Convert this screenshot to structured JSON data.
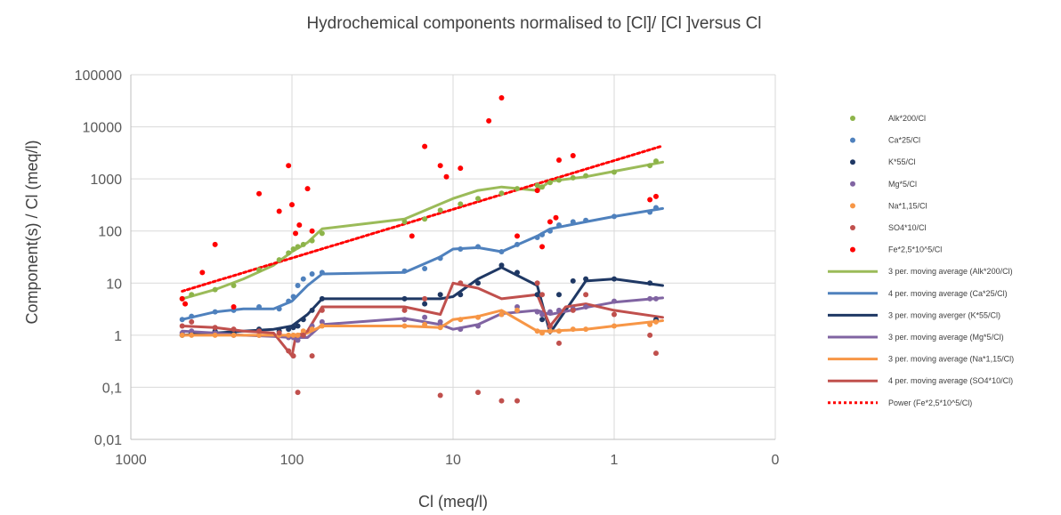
{
  "chart_data": {
    "type": "scatter",
    "title": "Hydrochemical components normalised to [Cl]/ [Cl ]versus Cl",
    "xlabel": "Cl (meq/l)",
    "ylabel": "Component(s) / Cl (meq/l)",
    "x_scale": "log",
    "x_reversed": true,
    "y_scale": "log",
    "xlim": [
      1000,
      0.1
    ],
    "ylim": [
      0.01,
      100000
    ],
    "x_tick_values": [
      1000,
      100,
      10,
      1,
      0.1
    ],
    "x_ticks": [
      "1000",
      "100",
      "10",
      "1",
      "0"
    ],
    "y_tick_values": [
      100000,
      10000,
      1000,
      100,
      10,
      1,
      0.1,
      0.01
    ],
    "y_ticks": [
      "100000",
      "10000",
      "1000",
      "100",
      "10",
      "1",
      "0,1",
      "0,01"
    ],
    "grid": true,
    "legend_position": "right",
    "series": [
      {
        "name": "Alk*200/Cl",
        "kind": "scatter",
        "color": "#8db44a",
        "x": [
          480,
          420,
          300,
          230,
          160,
          120,
          105,
          98,
          92,
          85,
          75,
          65,
          20,
          15,
          12,
          9,
          7,
          5,
          4,
          3,
          2.8,
          2.5,
          2.2,
          1.8,
          1.5,
          1,
          0.6,
          0.55
        ],
        "y": [
          5,
          6,
          7.5,
          9,
          18,
          28,
          38,
          45,
          50,
          55,
          65,
          90,
          150,
          170,
          250,
          330,
          420,
          530,
          650,
          750,
          700,
          850,
          950,
          1050,
          1150,
          1350,
          1800,
          2200
        ]
      },
      {
        "name": "Ca*25/Cl",
        "kind": "scatter",
        "color": "#4f81bd",
        "x": [
          480,
          420,
          300,
          230,
          160,
          120,
          105,
          98,
          92,
          85,
          75,
          65,
          20,
          15,
          12,
          9,
          7,
          5,
          4,
          3,
          2.8,
          2.5,
          2.2,
          1.8,
          1.5,
          1,
          0.6,
          0.55
        ],
        "y": [
          2,
          2.3,
          2.8,
          3,
          3.5,
          3.2,
          4.5,
          5.5,
          9,
          12,
          15,
          16,
          17,
          19,
          30,
          45,
          50,
          40,
          55,
          75,
          85,
          100,
          130,
          150,
          160,
          190,
          230,
          280
        ]
      },
      {
        "name": "K*55/Cl",
        "kind": "scatter",
        "color": "#1f3864",
        "x": [
          480,
          420,
          300,
          230,
          160,
          120,
          105,
          98,
          92,
          85,
          75,
          65,
          20,
          15,
          12,
          9,
          7,
          5,
          4,
          3,
          2.8,
          2.5,
          2.2,
          1.8,
          1.5,
          1,
          0.6,
          0.55
        ],
        "y": [
          1,
          1.1,
          1.2,
          1.1,
          1.3,
          1.2,
          1.3,
          1.4,
          1.5,
          2,
          3,
          5,
          5,
          4,
          6,
          6,
          10,
          22,
          16,
          6,
          2,
          1.2,
          6,
          11,
          12,
          12,
          10,
          2
        ]
      },
      {
        "name": "Mg*5/Cl",
        "kind": "scatter",
        "color": "#8064a2",
        "x": [
          480,
          420,
          300,
          230,
          160,
          120,
          105,
          98,
          92,
          85,
          75,
          65,
          20,
          15,
          12,
          9,
          7,
          5,
          4,
          3,
          2.8,
          2.5,
          2.2,
          1.8,
          1.5,
          1,
          0.6,
          0.55
        ],
        "y": [
          1.1,
          1.2,
          1.1,
          1,
          1,
          1,
          0.9,
          0.9,
          0.8,
          1,
          1.5,
          1.8,
          2,
          2.2,
          1.8,
          1.3,
          1.5,
          2.5,
          3.5,
          2.8,
          2.5,
          2.8,
          3,
          3.2,
          3.5,
          4.5,
          5,
          5
        ]
      },
      {
        "name": "Na*1,15/Cl",
        "kind": "scatter",
        "color": "#f79646",
        "x": [
          480,
          420,
          300,
          230,
          160,
          120,
          105,
          98,
          92,
          85,
          75,
          65,
          20,
          15,
          12,
          9,
          7,
          5,
          4,
          3,
          2.8,
          2.5,
          2.2,
          1.8,
          1.5,
          1,
          0.6,
          0.55
        ],
        "y": [
          1,
          1,
          1,
          1,
          1,
          1,
          1,
          1,
          1,
          1.2,
          1.3,
          1.5,
          1.5,
          1.6,
          1.4,
          2,
          2.2,
          2.5,
          3,
          1.2,
          1.1,
          1.2,
          1.2,
          1.3,
          1.3,
          1.5,
          1.6,
          1.8
        ]
      },
      {
        "name": "SO4*10/Cl",
        "kind": "scatter",
        "color": "#c0504d",
        "x": [
          480,
          420,
          300,
          230,
          160,
          120,
          105,
          98,
          92,
          85,
          75,
          65,
          20,
          15,
          12,
          9,
          7,
          5,
          4,
          3,
          2.8,
          2.5,
          2.2,
          1.8,
          1.5,
          1,
          0.6,
          0.55
        ],
        "y": [
          1.5,
          1.8,
          1.4,
          1.3,
          1.2,
          1.1,
          0.5,
          0.4,
          0.08,
          1,
          0.4,
          3,
          3,
          5,
          0.07,
          10,
          0.08,
          0.055,
          0.055,
          10,
          6,
          1.5,
          0.7,
          3,
          6,
          2.5,
          1,
          0.45
        ]
      },
      {
        "name": "Fe*2,5*10^5/Cl",
        "kind": "scatter",
        "color": "#ff0000",
        "x": [
          480,
          460,
          360,
          300,
          230,
          160,
          120,
          105,
          100,
          95,
          90,
          80,
          75,
          18,
          15,
          12,
          11,
          9,
          6,
          5,
          4,
          3,
          2.8,
          2.5,
          2.3,
          2.2,
          1.8,
          0.6,
          0.55
        ],
        "y": [
          5,
          4,
          16,
          55,
          3.5,
          520,
          240,
          1800,
          320,
          90,
          130,
          650,
          100,
          80,
          4200,
          1800,
          1100,
          1600,
          13000,
          36000,
          80,
          600,
          50,
          150,
          180,
          2300,
          2800,
          400,
          460
        ]
      },
      {
        "name": "3 per. moving average (Alk*200/Cl)",
        "kind": "line",
        "color": "#9bbb59",
        "width": 3,
        "x": [
          480,
          300,
          200,
          130,
          100,
          80,
          65,
          20,
          12,
          10,
          7,
          5,
          3,
          2.5,
          1.5,
          1,
          0.5
        ],
        "y": [
          5,
          7.5,
          12,
          22,
          40,
          60,
          110,
          170,
          330,
          420,
          600,
          700,
          600,
          900,
          1100,
          1400,
          2100
        ]
      },
      {
        "name": "4 per. moving average (Ca*25/Cl)",
        "kind": "line",
        "color": "#4f81bd",
        "width": 3,
        "x": [
          480,
          300,
          200,
          130,
          100,
          80,
          65,
          20,
          12,
          10,
          7,
          5,
          3,
          2.5,
          1.5,
          1,
          0.5
        ],
        "y": [
          2,
          2.8,
          3.2,
          3.2,
          4.5,
          9,
          15,
          16,
          32,
          45,
          48,
          40,
          80,
          110,
          150,
          190,
          270
        ]
      },
      {
        "name": "3 per. moving averger (K*55/Cl)",
        "kind": "line",
        "color": "#1f3864",
        "width": 3,
        "x": [
          480,
          300,
          200,
          130,
          100,
          80,
          65,
          20,
          12,
          10,
          7,
          5,
          3,
          2.5,
          1.5,
          1,
          0.5
        ],
        "y": [
          1,
          1.1,
          1.2,
          1.3,
          1.5,
          2.5,
          5,
          5,
          5,
          5.5,
          12,
          20,
          9,
          1.1,
          11,
          12,
          9
        ]
      },
      {
        "name": "3 per. moving average (Mg*5/Cl)",
        "kind": "line",
        "color": "#8064a2",
        "width": 3,
        "x": [
          480,
          300,
          200,
          130,
          100,
          80,
          65,
          20,
          12,
          10,
          7,
          5,
          3,
          2.5,
          1.5,
          1,
          0.5
        ],
        "y": [
          1.2,
          1.1,
          1,
          0.95,
          0.9,
          0.9,
          1.6,
          2.1,
          1.6,
          1.3,
          1.6,
          2.6,
          3,
          2.5,
          3.4,
          4.3,
          5.2
        ]
      },
      {
        "name": "3 per. moving average (Na*1,15/Cl)",
        "kind": "line",
        "color": "#f79646",
        "width": 3,
        "x": [
          480,
          300,
          200,
          130,
          100,
          80,
          65,
          20,
          12,
          10,
          7,
          5,
          3,
          2.5,
          1.5,
          1,
          0.5
        ],
        "y": [
          1,
          1,
          1,
          1,
          1,
          1.1,
          1.5,
          1.5,
          1.4,
          2,
          2.3,
          3,
          1.2,
          1.2,
          1.3,
          1.5,
          1.9
        ]
      },
      {
        "name": "4 per. moving average (SO4*10/Cl)",
        "kind": "line",
        "color": "#c0504d",
        "width": 3,
        "x": [
          480,
          300,
          200,
          130,
          100,
          95,
          80,
          65,
          20,
          12,
          10,
          7,
          5,
          3,
          2.5,
          2,
          1.5,
          1,
          0.5
        ],
        "y": [
          1.5,
          1.4,
          1.2,
          1.1,
          0.4,
          0.9,
          1.2,
          3.5,
          3.5,
          2.5,
          10,
          8,
          5,
          6,
          1.5,
          3.5,
          4,
          3,
          2.2
        ]
      },
      {
        "name": "Power (Fe*2,5*10^5/Cl)",
        "kind": "trend",
        "color": "#ff0000",
        "width": 3,
        "x": [
          480,
          0.5
        ],
        "y": [
          7,
          4300
        ]
      }
    ]
  }
}
